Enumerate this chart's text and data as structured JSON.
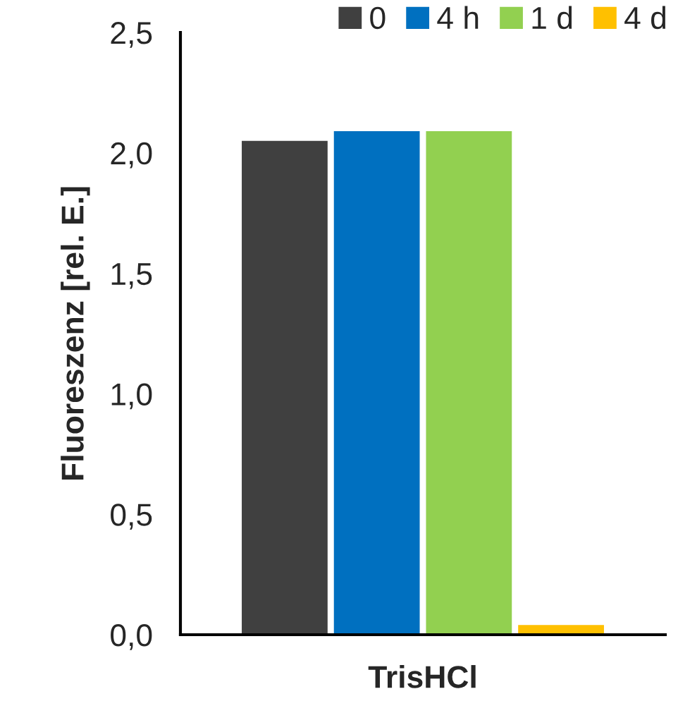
{
  "chart_data": {
    "type": "bar",
    "ylabel": "Fluoreszenz [rel. E.]",
    "xlabel": "TrisHCl",
    "categories": [
      null
    ],
    "series": [
      {
        "name": "0",
        "color": "#404040",
        "values": [
          2.05
        ]
      },
      {
        "name": "4 h",
        "color": "#0070c0",
        "values": [
          2.09
        ]
      },
      {
        "name": "1 d",
        "color": "#92d050",
        "values": [
          2.09
        ]
      },
      {
        "name": "4 d",
        "color": "#ffc000",
        "values": [
          0.04
        ]
      }
    ],
    "ylim": [
      0,
      2.5
    ],
    "yticks": [
      {
        "value": 0,
        "label": "0,0"
      },
      {
        "value": 0.5,
        "label": "0,5"
      },
      {
        "value": 1,
        "label": "1,0"
      },
      {
        "value": 1.5,
        "label": "1,5"
      },
      {
        "value": 2,
        "label": "2,0"
      },
      {
        "value": 2.5,
        "label": "2,5"
      }
    ],
    "grid": false,
    "legend": "top right"
  }
}
